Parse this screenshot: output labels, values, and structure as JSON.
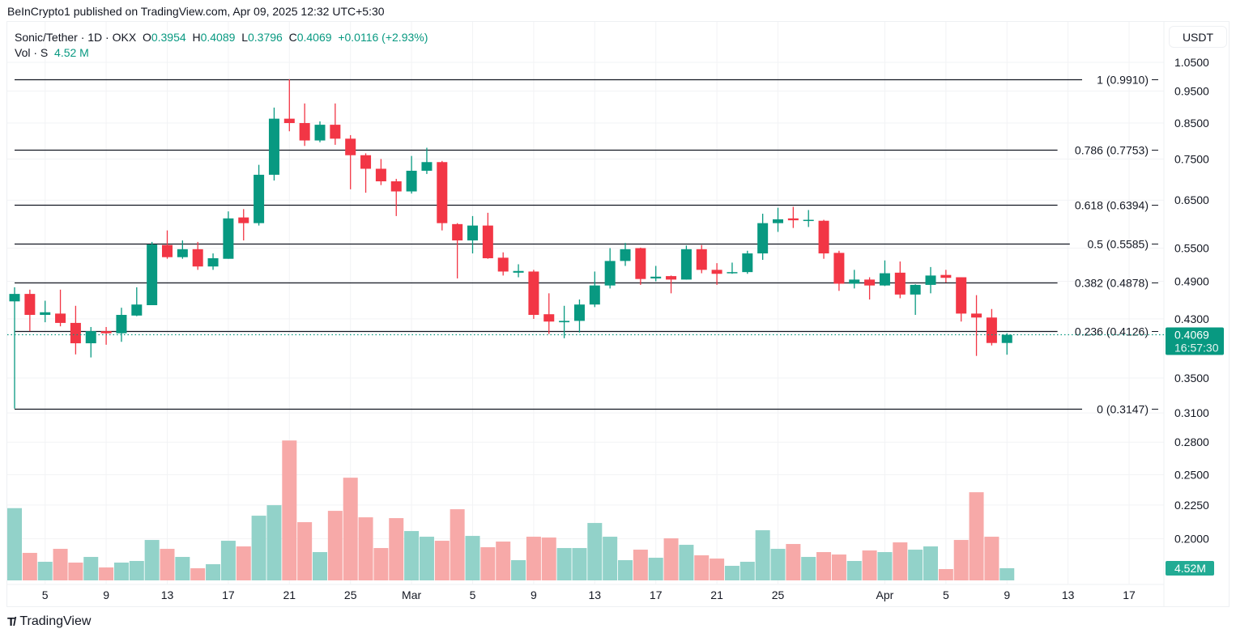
{
  "header": {
    "published": "BeInCrypto1 published on TradingView.com, Apr 09, 2025 12:32 UTC+5:30",
    "symbol": "Sonic/Tether · 1D · OKX",
    "o_label": "O",
    "o_value": "0.3954",
    "h_label": "H",
    "h_value": "0.4089",
    "l_label": "L",
    "l_value": "0.3796",
    "c_label": "C",
    "c_value": "0.4069",
    "change": "+0.0116 (+2.93%)",
    "vol_label": "Vol · S",
    "vol_value": "4.52 M"
  },
  "currency_button": "USDT",
  "last_price": {
    "price": "0.4069",
    "countdown": "16:57:30",
    "volume": "4.52M"
  },
  "footer": {
    "brand": "TradingView",
    "logo": "TV"
  },
  "colors": {
    "up": "#089981",
    "down": "#F23645",
    "up_vol": "#92D2C9",
    "down_vol": "#F7A9A8",
    "fib": "#131722"
  },
  "chart_data": {
    "type": "candlestick",
    "title": "Sonic/Tether · 1D · OKX",
    "scale": "log",
    "ylim": [
      0.31,
      1.05
    ],
    "price_ticks": [
      "1.0500",
      "0.9500",
      "0.8500",
      "0.7500",
      "0.6500",
      "0.5500",
      "0.4900",
      "0.4300",
      "0.3500",
      "0.3100",
      "0.2800",
      "0.2500",
      "0.2250",
      "0.2000"
    ],
    "x_ticks": [
      {
        "label": "5",
        "day": 2
      },
      {
        "label": "9",
        "day": 6
      },
      {
        "label": "13",
        "day": 10
      },
      {
        "label": "17",
        "day": 14
      },
      {
        "label": "21",
        "day": 18
      },
      {
        "label": "25",
        "day": 22
      },
      {
        "label": "Mar",
        "day": 26
      },
      {
        "label": "5",
        "day": 30
      },
      {
        "label": "9",
        "day": 34
      },
      {
        "label": "13",
        "day": 38
      },
      {
        "label": "17",
        "day": 42
      },
      {
        "label": "21",
        "day": 46
      },
      {
        "label": "25",
        "day": 50
      },
      {
        "label": "Apr",
        "day": 57
      },
      {
        "label": "5",
        "day": 61
      },
      {
        "label": "9",
        "day": 65
      },
      {
        "label": "13",
        "day": 69
      },
      {
        "label": "17",
        "day": 73
      }
    ],
    "fib_levels": [
      {
        "label": "1 (0.9910)",
        "price": 0.991
      },
      {
        "label": "0.786 (0.7753)",
        "price": 0.7753
      },
      {
        "label": "0.618 (0.6394)",
        "price": 0.6394
      },
      {
        "label": "0.5 (0.5585)",
        "price": 0.5585
      },
      {
        "label": "0.382 (0.4878)",
        "price": 0.4878
      },
      {
        "label": "0.236 (0.4126)",
        "price": 0.4126
      },
      {
        "label": "0 (0.3147)",
        "price": 0.3147
      }
    ],
    "volume_unit": "M",
    "candles_ohlcv": [
      [
        0.457,
        0.48,
        0.3147,
        0.469,
        26.8
      ],
      [
        0.469,
        0.476,
        0.412,
        0.436,
        10.2
      ],
      [
        0.436,
        0.458,
        0.425,
        0.44,
        6.9
      ],
      [
        0.438,
        0.476,
        0.419,
        0.424,
        11.7
      ],
      [
        0.424,
        0.45,
        0.38,
        0.395,
        6.6
      ],
      [
        0.395,
        0.418,
        0.376,
        0.412,
        8.7
      ],
      [
        0.412,
        0.418,
        0.393,
        0.409,
        4.8
      ],
      [
        0.409,
        0.447,
        0.397,
        0.436,
        6.6
      ],
      [
        0.435,
        0.48,
        0.434,
        0.452,
        7.2
      ],
      [
        0.451,
        0.562,
        0.451,
        0.557,
        15.0
      ],
      [
        0.556,
        0.585,
        0.53,
        0.533,
        11.7
      ],
      [
        0.533,
        0.565,
        0.53,
        0.548,
        8.7
      ],
      [
        0.548,
        0.562,
        0.51,
        0.516,
        4.5
      ],
      [
        0.516,
        0.54,
        0.51,
        0.531,
        6.0
      ],
      [
        0.53,
        0.625,
        0.53,
        0.61,
        14.7
      ],
      [
        0.612,
        0.63,
        0.565,
        0.6,
        12.6
      ],
      [
        0.6,
        0.735,
        0.595,
        0.71,
        24.0
      ],
      [
        0.71,
        0.897,
        0.696,
        0.863,
        27.9
      ],
      [
        0.863,
        0.99,
        0.826,
        0.85,
        51.9
      ],
      [
        0.85,
        0.91,
        0.785,
        0.8,
        21.6
      ],
      [
        0.8,
        0.855,
        0.795,
        0.845,
        10.5
      ],
      [
        0.845,
        0.91,
        0.788,
        0.805,
        25.8
      ],
      [
        0.805,
        0.815,
        0.675,
        0.76,
        38.1
      ],
      [
        0.76,
        0.765,
        0.667,
        0.725,
        23.4
      ],
      [
        0.725,
        0.75,
        0.685,
        0.694,
        12.0
      ],
      [
        0.694,
        0.7,
        0.615,
        0.67,
        23.1
      ],
      [
        0.67,
        0.758,
        0.665,
        0.72,
        18.3
      ],
      [
        0.72,
        0.78,
        0.712,
        0.742,
        16.2
      ],
      [
        0.742,
        0.745,
        0.585,
        0.6,
        14.7
      ],
      [
        0.598,
        0.6,
        0.495,
        0.565,
        26.4
      ],
      [
        0.565,
        0.615,
        0.54,
        0.595,
        16.5
      ],
      [
        0.595,
        0.622,
        0.53,
        0.531,
        12.3
      ],
      [
        0.532,
        0.542,
        0.5,
        0.507,
        14.4
      ],
      [
        0.505,
        0.52,
        0.497,
        0.508,
        7.5
      ],
      [
        0.507,
        0.51,
        0.43,
        0.436,
        16.2
      ],
      [
        0.437,
        0.47,
        0.408,
        0.426,
        15.9
      ],
      [
        0.425,
        0.45,
        0.402,
        0.427,
        12.0
      ],
      [
        0.427,
        0.46,
        0.41,
        0.452,
        12.0
      ],
      [
        0.452,
        0.507,
        0.448,
        0.483,
        21.3
      ],
      [
        0.483,
        0.55,
        0.478,
        0.526,
        16.2
      ],
      [
        0.526,
        0.56,
        0.517,
        0.548,
        7.5
      ],
      [
        0.55,
        0.551,
        0.484,
        0.494,
        11.4
      ],
      [
        0.495,
        0.517,
        0.49,
        0.498,
        8.4
      ],
      [
        0.499,
        0.5,
        0.47,
        0.493,
        15.6
      ],
      [
        0.493,
        0.555,
        0.493,
        0.548,
        13.2
      ],
      [
        0.548,
        0.556,
        0.504,
        0.51,
        9.3
      ],
      [
        0.51,
        0.522,
        0.484,
        0.503,
        8.1
      ],
      [
        0.504,
        0.523,
        0.503,
        0.506,
        5.4
      ],
      [
        0.506,
        0.545,
        0.503,
        0.54,
        6.9
      ],
      [
        0.54,
        0.62,
        0.528,
        0.6,
        18.6
      ],
      [
        0.6,
        0.633,
        0.582,
        0.608,
        11.7
      ],
      [
        0.61,
        0.635,
        0.59,
        0.606,
        13.5
      ],
      [
        0.605,
        0.628,
        0.592,
        0.607,
        8.7
      ],
      [
        0.605,
        0.607,
        0.53,
        0.54,
        10.5
      ],
      [
        0.541,
        0.545,
        0.474,
        0.486,
        9.6
      ],
      [
        0.486,
        0.51,
        0.478,
        0.493,
        7.2
      ],
      [
        0.493,
        0.497,
        0.46,
        0.483,
        11.1
      ],
      [
        0.483,
        0.527,
        0.482,
        0.504,
        10.5
      ],
      [
        0.505,
        0.525,
        0.462,
        0.468,
        14.1
      ],
      [
        0.468,
        0.485,
        0.436,
        0.484,
        11.4
      ],
      [
        0.484,
        0.515,
        0.47,
        0.5,
        12.6
      ],
      [
        0.501,
        0.51,
        0.488,
        0.496,
        4.2
      ],
      [
        0.497,
        0.497,
        0.426,
        0.438,
        15.0
      ],
      [
        0.438,
        0.467,
        0.378,
        0.432,
        32.7
      ],
      [
        0.432,
        0.445,
        0.392,
        0.3954,
        16.2
      ],
      [
        0.3954,
        0.4089,
        0.3796,
        0.4069,
        4.52
      ]
    ]
  }
}
